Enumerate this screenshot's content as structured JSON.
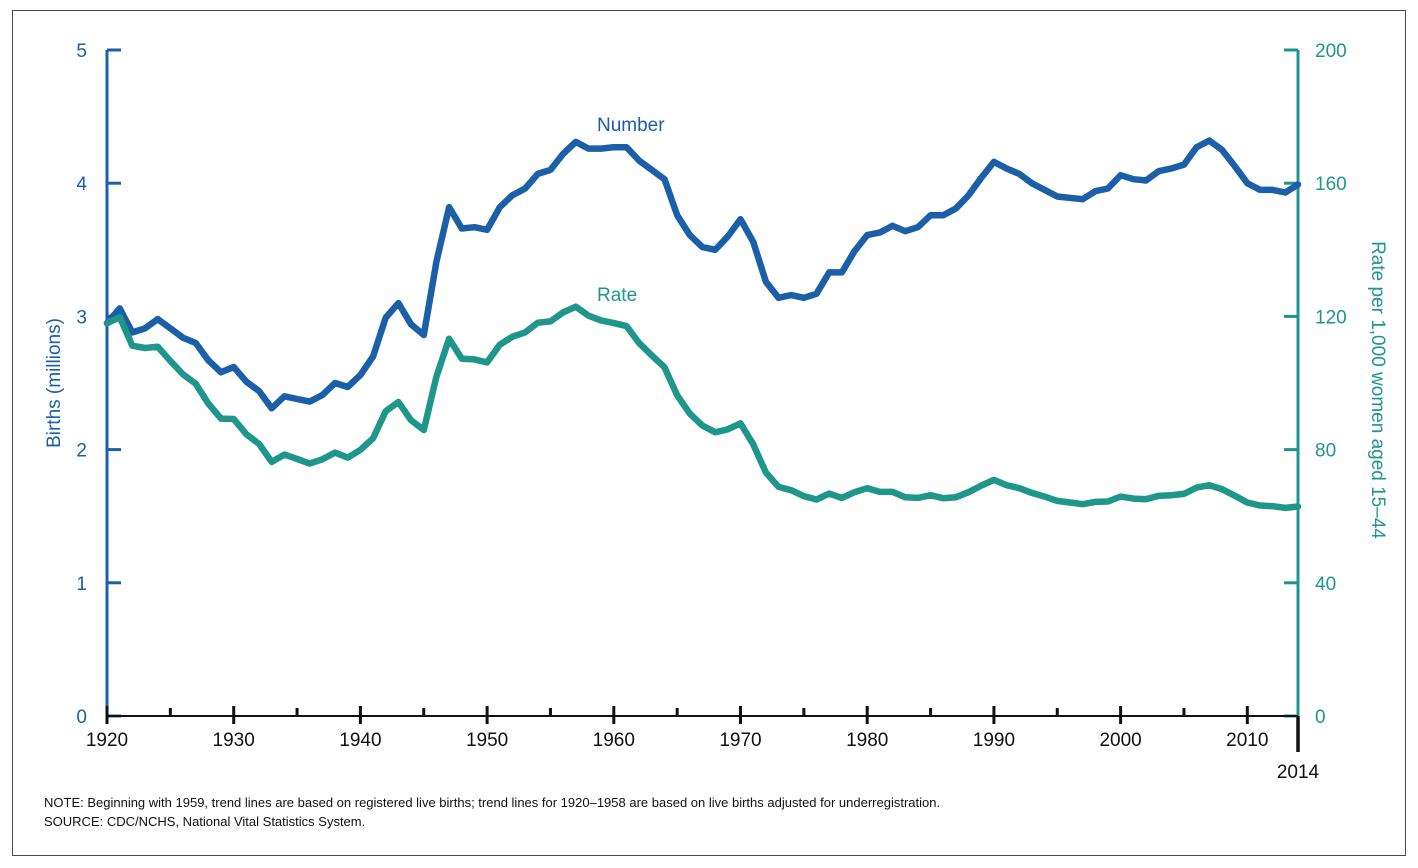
{
  "chart_data": {
    "type": "line",
    "xlim": [
      1920,
      2014
    ],
    "x_ticks": [
      "1920",
      "1930",
      "1940",
      "1950",
      "1960",
      "1970",
      "1980",
      "1990",
      "2000",
      "2010"
    ],
    "x_end_label": "2014",
    "y_left": {
      "label": "Births (millions)",
      "range": [
        0,
        5
      ],
      "ticks": [
        "0",
        "1",
        "2",
        "3",
        "4",
        "5"
      ],
      "color": "#1a5fa8"
    },
    "y_right": {
      "label": "Rate per 1,000 women aged 15–44",
      "range": [
        0,
        200
      ],
      "ticks": [
        "0",
        "40",
        "80",
        "120",
        "160",
        "200"
      ],
      "color": "#1f968c"
    },
    "x": [
      1920,
      1921,
      1922,
      1923,
      1924,
      1925,
      1926,
      1927,
      1928,
      1929,
      1930,
      1931,
      1932,
      1933,
      1934,
      1935,
      1936,
      1937,
      1938,
      1939,
      1940,
      1941,
      1942,
      1943,
      1944,
      1945,
      1946,
      1947,
      1948,
      1949,
      1950,
      1951,
      1952,
      1953,
      1954,
      1955,
      1956,
      1957,
      1958,
      1959,
      1960,
      1961,
      1962,
      1963,
      1964,
      1965,
      1966,
      1967,
      1968,
      1969,
      1970,
      1971,
      1972,
      1973,
      1974,
      1975,
      1976,
      1977,
      1978,
      1979,
      1980,
      1981,
      1982,
      1983,
      1984,
      1985,
      1986,
      1987,
      1988,
      1989,
      1990,
      1991,
      1992,
      1993,
      1994,
      1995,
      1996,
      1997,
      1998,
      1999,
      2000,
      2001,
      2002,
      2003,
      2004,
      2005,
      2006,
      2007,
      2008,
      2009,
      2010,
      2011,
      2012,
      2013,
      2014
    ],
    "series": [
      {
        "name": "Number",
        "axis": "left",
        "color": "#1a5fa8",
        "values": [
          2.95,
          3.06,
          2.88,
          2.91,
          2.98,
          2.91,
          2.84,
          2.8,
          2.67,
          2.58,
          2.62,
          2.51,
          2.44,
          2.31,
          2.4,
          2.38,
          2.36,
          2.41,
          2.5,
          2.47,
          2.56,
          2.7,
          2.99,
          3.1,
          2.94,
          2.86,
          3.41,
          3.82,
          3.66,
          3.67,
          3.65,
          3.82,
          3.91,
          3.96,
          4.07,
          4.1,
          4.22,
          4.31,
          4.26,
          4.26,
          4.27,
          4.27,
          4.17,
          4.1,
          4.03,
          3.76,
          3.61,
          3.52,
          3.5,
          3.6,
          3.73,
          3.56,
          3.26,
          3.14,
          3.16,
          3.14,
          3.17,
          3.33,
          3.33,
          3.49,
          3.61,
          3.63,
          3.68,
          3.64,
          3.67,
          3.76,
          3.76,
          3.81,
          3.91,
          4.04,
          4.16,
          4.11,
          4.07,
          4.0,
          3.95,
          3.9,
          3.89,
          3.88,
          3.94,
          3.96,
          4.06,
          4.03,
          4.02,
          4.09,
          4.11,
          4.14,
          4.27,
          4.32,
          4.25,
          4.13,
          4.0,
          3.95,
          3.95,
          3.93,
          3.99
        ]
      },
      {
        "name": "Rate",
        "axis": "right",
        "color": "#1f968c",
        "values": [
          117.9,
          119.8,
          111.2,
          110.5,
          110.9,
          106.6,
          102.6,
          99.8,
          93.8,
          89.3,
          89.2,
          84.6,
          81.7,
          76.3,
          78.5,
          77.2,
          75.8,
          77.1,
          79.1,
          77.6,
          79.9,
          83.4,
          91.5,
          94.3,
          88.8,
          85.9,
          101.9,
          113.3,
          107.3,
          107.1,
          106.2,
          111.5,
          113.9,
          115.2,
          118.1,
          118.5,
          121.2,
          122.9,
          120.2,
          118.8,
          118.0,
          117.1,
          112.0,
          108.3,
          104.7,
          96.3,
          90.8,
          87.2,
          85.2,
          86.1,
          87.9,
          81.6,
          73.1,
          68.8,
          67.8,
          66.0,
          65.0,
          66.8,
          65.5,
          67.2,
          68.4,
          67.3,
          67.3,
          65.7,
          65.5,
          66.3,
          65.4,
          65.7,
          67.2,
          69.2,
          70.9,
          69.3,
          68.4,
          67.0,
          65.9,
          64.6,
          64.1,
          63.6,
          64.3,
          64.4,
          65.9,
          65.3,
          65.1,
          66.1,
          66.3,
          66.7,
          68.6,
          69.3,
          68.1,
          66.2,
          64.1,
          63.2,
          63.0,
          62.5,
          62.9
        ]
      }
    ]
  },
  "notes": {
    "note": "NOTE: Beginning with 1959, trend lines are based on registered live births; trend lines for 1920–1958 are based on live births adjusted for underregistration.",
    "source": "SOURCE: CDC/NCHS, National Vital Statistics System."
  }
}
